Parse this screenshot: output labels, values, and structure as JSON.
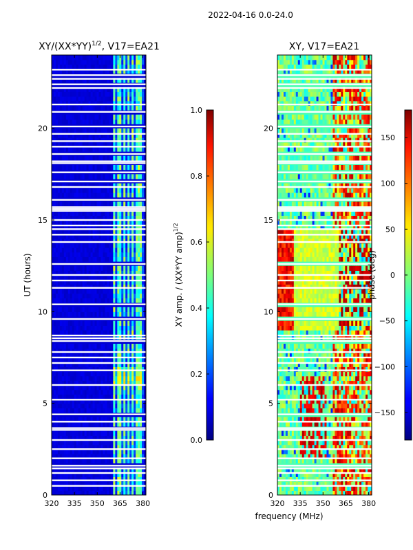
{
  "header": "2022-04-16 0.0-24.0",
  "chart_data": [
    {
      "type": "heatmap",
      "title_main": "XY/(XX*YY)",
      "title_sup": "1/2",
      "title_rest": ", V17=EA21",
      "xlabel": "",
      "ylabel": "UT (hours)",
      "xlim": [
        320,
        382
      ],
      "ylim": [
        0,
        24
      ],
      "xticks": [
        320,
        335,
        350,
        365,
        380
      ],
      "yticks": [
        0,
        5,
        10,
        15,
        20
      ],
      "colorbar": {
        "label_main": "XY amp. / (XX*YY amp)",
        "label_sup": "1/2",
        "range": [
          0.0,
          1.0
        ],
        "ticks": [
          "0.0",
          "0.2",
          "0.4",
          "0.6",
          "0.8",
          "1.0"
        ],
        "colormap": "jet"
      },
      "description_values": {
        "quiet_band_mhz": [
          320,
          360
        ],
        "quiet_amplitude": 0.05,
        "rfi_band_mhz": [
          360,
          381
        ],
        "rfi_peak_amplitude": 0.55
      }
    },
    {
      "type": "heatmap",
      "title": "XY, V17=EA21",
      "xlabel": "frequency (MHz)",
      "ylabel": "",
      "xlim": [
        320,
        382
      ],
      "ylim": [
        0,
        24
      ],
      "xticks": [
        320,
        335,
        350,
        365,
        380
      ],
      "yticks": [
        0,
        5,
        10,
        15,
        20
      ],
      "colorbar": {
        "label": "phase (deg)",
        "range": [
          -180,
          180
        ],
        "ticks": [
          "−150",
          "−100",
          "−50",
          "0",
          "50",
          "100",
          "150"
        ],
        "colormap": "jet"
      }
    }
  ]
}
